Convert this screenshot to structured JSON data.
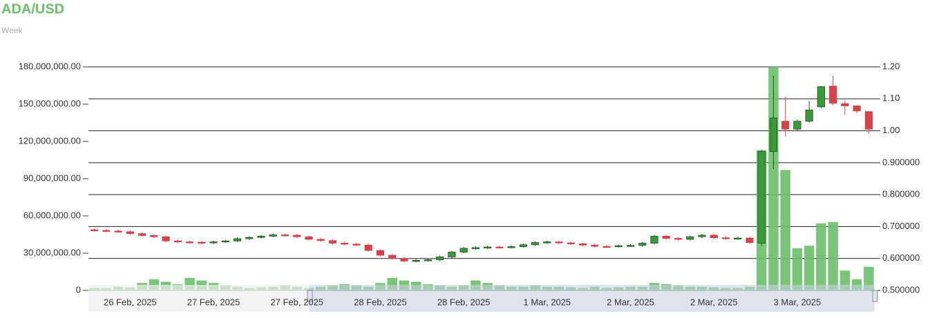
{
  "chart_data": {
    "type": "candlestick",
    "title": "ADA/USD",
    "subtitle": "Week",
    "categories": [
      null,
      null,
      null,
      "26 Feb, 2025",
      null,
      null,
      null,
      null,
      null,
      null,
      "27 Feb, 2025",
      null,
      null,
      null,
      null,
      null,
      null,
      "27 Feb, 2025",
      null,
      null,
      null,
      null,
      null,
      null,
      "28 Feb, 2025",
      null,
      null,
      null,
      null,
      null,
      null,
      "28 Feb, 2025",
      null,
      null,
      null,
      null,
      null,
      null,
      "1 Mar, 2025",
      null,
      null,
      null,
      null,
      null,
      null,
      "2 Mar, 2025",
      null,
      null,
      null,
      null,
      null,
      null,
      "2 Mar, 2025",
      null,
      null,
      null,
      null,
      null,
      null,
      "3 Mar, 2025",
      null,
      null,
      null,
      null,
      null,
      null
    ],
    "open": [
      0.69,
      0.688,
      0.686,
      0.684,
      0.678,
      0.672,
      0.668,
      0.655,
      0.652,
      0.651,
      0.649,
      0.652,
      0.655,
      0.662,
      0.666,
      0.67,
      0.674,
      0.673,
      0.668,
      0.66,
      0.656,
      0.648,
      0.645,
      0.642,
      0.625,
      0.61,
      0.6,
      0.592,
      0.594,
      0.596,
      0.605,
      0.62,
      0.632,
      0.634,
      0.636,
      0.635,
      0.637,
      0.643,
      0.65,
      0.652,
      0.649,
      0.646,
      0.642,
      0.638,
      0.637,
      0.64,
      0.641,
      0.648,
      0.67,
      0.663,
      0.66,
      0.668,
      0.673,
      0.665,
      0.663,
      0.664,
      0.648,
      0.935,
      1.03,
      1.005,
      1.03,
      1.075,
      1.14,
      1.085,
      1.078,
      1.06
    ],
    "high": [
      0.694,
      0.692,
      0.69,
      0.688,
      0.682,
      0.676,
      0.672,
      0.659,
      0.656,
      0.655,
      0.656,
      0.659,
      0.666,
      0.67,
      0.674,
      0.678,
      0.678,
      0.677,
      0.672,
      0.664,
      0.66,
      0.652,
      0.649,
      0.646,
      0.629,
      0.614,
      0.604,
      0.598,
      0.6,
      0.609,
      0.624,
      0.636,
      0.638,
      0.64,
      0.64,
      0.641,
      0.647,
      0.654,
      0.656,
      0.656,
      0.653,
      0.65,
      0.646,
      0.642,
      0.644,
      0.645,
      0.652,
      0.674,
      0.674,
      0.667,
      0.672,
      0.677,
      0.677,
      0.669,
      0.668,
      0.668,
      0.94,
      1.172,
      1.107,
      1.035,
      1.093,
      1.14,
      1.172,
      1.095,
      1.08,
      1.062
    ],
    "low": [
      0.684,
      0.682,
      0.68,
      0.674,
      0.668,
      0.664,
      0.651,
      0.648,
      0.647,
      0.645,
      0.645,
      0.648,
      0.651,
      0.658,
      0.662,
      0.666,
      0.669,
      0.664,
      0.656,
      0.652,
      0.644,
      0.641,
      0.638,
      0.621,
      0.606,
      0.596,
      0.588,
      0.588,
      0.59,
      0.592,
      0.601,
      0.616,
      0.628,
      0.63,
      0.631,
      0.631,
      0.633,
      0.639,
      0.646,
      0.645,
      0.642,
      0.638,
      0.634,
      0.633,
      0.633,
      0.636,
      0.637,
      0.644,
      0.659,
      0.656,
      0.656,
      0.664,
      0.661,
      0.659,
      0.659,
      0.646,
      0.64,
      0.88,
      0.982,
      1.0,
      1.025,
      1.07,
      1.08,
      1.05,
      1.055,
      0.99
    ],
    "close": [
      0.688,
      0.686,
      0.684,
      0.678,
      0.672,
      0.668,
      0.655,
      0.652,
      0.651,
      0.649,
      0.652,
      0.655,
      0.662,
      0.666,
      0.67,
      0.674,
      0.673,
      0.668,
      0.66,
      0.656,
      0.648,
      0.645,
      0.642,
      0.625,
      0.61,
      0.6,
      0.592,
      0.594,
      0.596,
      0.605,
      0.62,
      0.632,
      0.634,
      0.636,
      0.635,
      0.637,
      0.643,
      0.65,
      0.652,
      0.649,
      0.646,
      0.642,
      0.638,
      0.637,
      0.64,
      0.641,
      0.648,
      0.67,
      0.663,
      0.66,
      0.668,
      0.673,
      0.665,
      0.663,
      0.664,
      0.65,
      0.935,
      1.04,
      1.005,
      1.03,
      1.065,
      1.138,
      1.086,
      1.078,
      1.062,
      1.005
    ],
    "volume": [
      2000000,
      2000000,
      3000000,
      2500000,
      6000000,
      9000000,
      7000000,
      5000000,
      10000000,
      8000000,
      6000000,
      4000000,
      3000000,
      2000000,
      2500000,
      3000000,
      4000000,
      3000000,
      2000000,
      3000000,
      4000000,
      5000000,
      4000000,
      3000000,
      6000000,
      10000000,
      8000000,
      7000000,
      5000000,
      4000000,
      3000000,
      4000000,
      8000000,
      6000000,
      4000000,
      3000000,
      3000000,
      4000000,
      3000000,
      3000000,
      2500000,
      2000000,
      3000000,
      2000000,
      2500000,
      3000000,
      3000000,
      6000000,
      5000000,
      4000000,
      3000000,
      3000000,
      2500000,
      2000000,
      2000000,
      3000000,
      113000000,
      180000000,
      97000000,
      34000000,
      36000000,
      54000000,
      55000000,
      16000000,
      9000000,
      19000000
    ],
    "up_color": "#3a9a3a",
    "down_color": "#d2434b",
    "volume_color": "#6cbf6c",
    "ylim": [
      0,
      180000000
    ],
    "yticks": [
      0,
      {
        "value": 30000000,
        "label": "30,000,000.00"
      },
      {
        "value": 60000000,
        "label": "60,000,000.00"
      },
      {
        "value": 90000000,
        "label": "90,000,000.00"
      },
      {
        "value": 120000000,
        "label": "120,000,000.00"
      },
      {
        "value": 150000000,
        "label": "150,000,000.00"
      },
      {
        "value": 180000000,
        "label": "180,000,000.00"
      }
    ],
    "y2lim": [
      0.5,
      1.2
    ],
    "y2ticks": [
      {
        "value": 0.5,
        "label": "0.500000"
      },
      {
        "value": 0.6,
        "label": "0.600000"
      },
      {
        "value": 0.7,
        "label": "0.700000"
      },
      {
        "value": 0.8,
        "label": "0.800000"
      },
      {
        "value": 0.9,
        "label": "0.900000"
      },
      {
        "value": 1.0,
        "label": "1.00"
      },
      {
        "value": 1.1,
        "label": "1.10"
      },
      {
        "value": 1.2,
        "label": "1.20"
      }
    ],
    "grid": true
  }
}
